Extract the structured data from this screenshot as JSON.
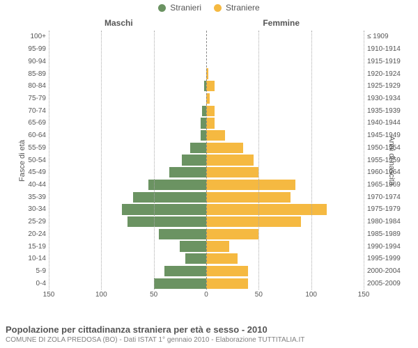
{
  "legend": {
    "male": {
      "label": "Stranieri",
      "color": "#6b9362"
    },
    "female": {
      "label": "Straniere",
      "color": "#f5b941"
    }
  },
  "titles": {
    "maschi": "Maschi",
    "femmine": "Femmine",
    "y_left": "Fasce di età",
    "y_right": "Anni di nascita"
  },
  "axis": {
    "max": 150,
    "ticks": [
      150,
      100,
      50,
      0,
      50,
      100,
      150
    ],
    "grid_color": "#aaaaaa"
  },
  "rows": [
    {
      "age": "100+",
      "birth": "≤ 1909",
      "m": 0,
      "f": 0
    },
    {
      "age": "95-99",
      "birth": "1910-1914",
      "m": 0,
      "f": 0
    },
    {
      "age": "90-94",
      "birth": "1915-1919",
      "m": 0,
      "f": 0
    },
    {
      "age": "85-89",
      "birth": "1920-1924",
      "m": 0,
      "f": 2
    },
    {
      "age": "80-84",
      "birth": "1925-1929",
      "m": 2,
      "f": 8
    },
    {
      "age": "75-79",
      "birth": "1930-1934",
      "m": 0,
      "f": 3
    },
    {
      "age": "70-74",
      "birth": "1935-1939",
      "m": 4,
      "f": 8
    },
    {
      "age": "65-69",
      "birth": "1940-1944",
      "m": 5,
      "f": 8
    },
    {
      "age": "60-64",
      "birth": "1945-1949",
      "m": 5,
      "f": 18
    },
    {
      "age": "55-59",
      "birth": "1950-1954",
      "m": 15,
      "f": 35
    },
    {
      "age": "50-54",
      "birth": "1955-1959",
      "m": 23,
      "f": 45
    },
    {
      "age": "45-49",
      "birth": "1960-1964",
      "m": 35,
      "f": 50
    },
    {
      "age": "40-44",
      "birth": "1965-1969",
      "m": 55,
      "f": 85
    },
    {
      "age": "35-39",
      "birth": "1970-1974",
      "m": 70,
      "f": 80
    },
    {
      "age": "30-34",
      "birth": "1975-1979",
      "m": 80,
      "f": 115
    },
    {
      "age": "25-29",
      "birth": "1980-1984",
      "m": 75,
      "f": 90
    },
    {
      "age": "20-24",
      "birth": "1985-1989",
      "m": 45,
      "f": 50
    },
    {
      "age": "15-19",
      "birth": "1990-1994",
      "m": 25,
      "f": 22
    },
    {
      "age": "10-14",
      "birth": "1995-1999",
      "m": 20,
      "f": 30
    },
    {
      "age": "5-9",
      "birth": "2000-2004",
      "m": 40,
      "f": 40
    },
    {
      "age": "0-4",
      "birth": "2005-2009",
      "m": 50,
      "f": 40
    }
  ],
  "footer": {
    "title": "Popolazione per cittadinanza straniera per età e sesso - 2010",
    "sub": "COMUNE DI ZOLA PREDOSA (BO) - Dati ISTAT 1° gennaio 2010 - Elaborazione TUTTITALIA.IT"
  }
}
